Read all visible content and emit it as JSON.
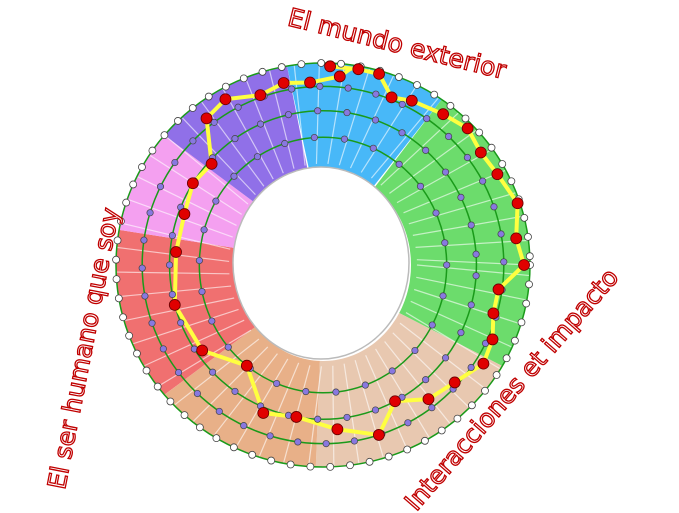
{
  "labels": {
    "top": "El mundo exterior",
    "left": "El ser humano que soy",
    "bottom_right": "Interacciones et impacto"
  },
  "colors": {
    "label_outline": "#c00000",
    "ring_line": "#1a9a1a",
    "path": "#ffff40",
    "path_node": "#e00000",
    "inner_node": "#8878e0",
    "outer_node": "#ffffff",
    "sectors": [
      "#48b8f8",
      "#6cdc6c",
      "#e8c8b0",
      "#e8b088",
      "#f07070",
      "#f4a0f0",
      "#9070e8"
    ]
  }
}
